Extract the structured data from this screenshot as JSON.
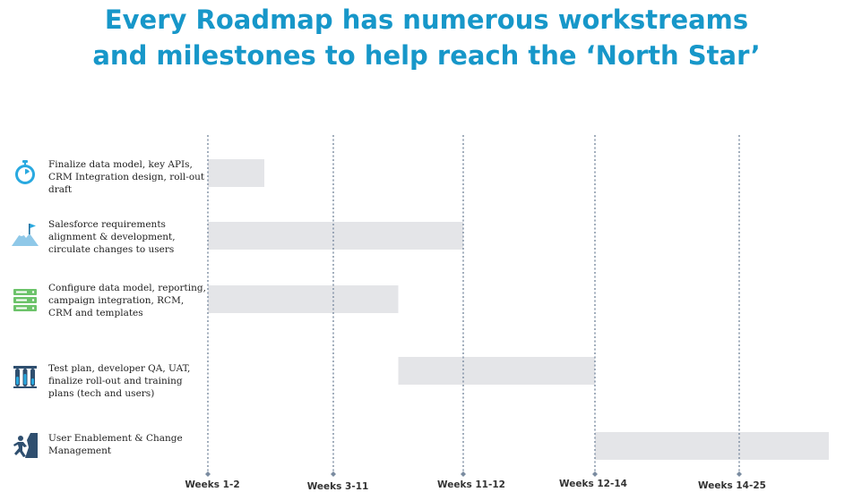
{
  "title": {
    "line1": "Every Roadmap has numerous workstreams",
    "line2": "and milestones to help reach the ‘North Star’"
  },
  "chart_data": {
    "type": "bar",
    "orientation": "gantt",
    "categories": [
      "Weeks 1-2",
      "Weeks 3-11",
      "Weeks 11-12",
      "Weeks 12-14",
      "Weeks 14-25"
    ],
    "tasks": [
      {
        "label": "Finalize data model, key APIs, CRM Integration design, roll-out draft",
        "icon": "stopwatch-icon",
        "start": 0,
        "end": 0.45
      },
      {
        "label": "Salesforce requirements alignment & development, circulate changes to users",
        "icon": "mountain-flag-icon",
        "start": 0,
        "end": 2
      },
      {
        "label": "Configure data model, reporting, campaign integration, RCM, CRM and templates",
        "icon": "server-stack-icon",
        "start": 0,
        "end": 1.5
      },
      {
        "label": "Test plan, developer QA, UAT, finalize roll-out and training plans (tech and users)",
        "icon": "test-tubes-icon",
        "start": 1.5,
        "end": 3
      },
      {
        "label": "User Enablement & Change Management",
        "icon": "climber-icon",
        "start": 3,
        "end": 4.65
      }
    ],
    "grid": true,
    "colors": {
      "bar": "#e4e5e8",
      "gridline": "#7a8ba0",
      "title": "#1797c9",
      "icon": "#29a9e0"
    }
  }
}
